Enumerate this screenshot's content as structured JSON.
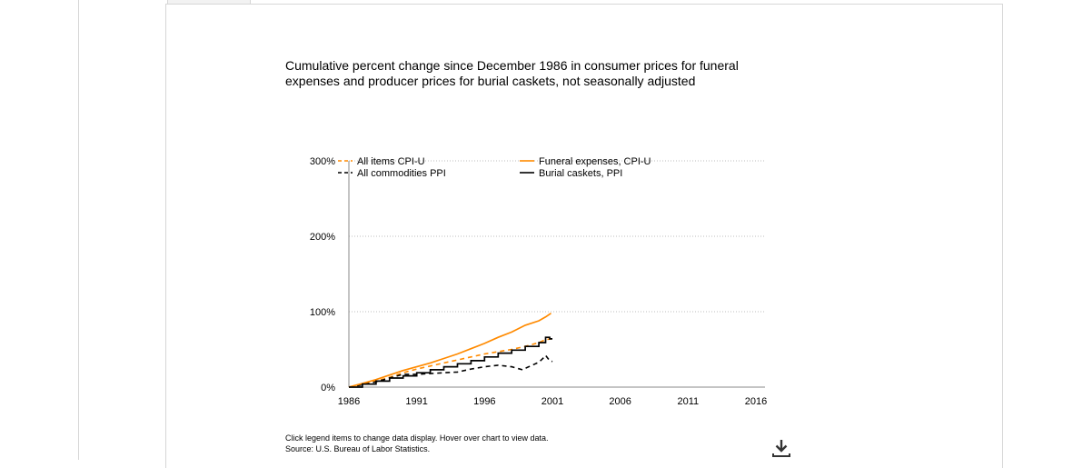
{
  "chart_title": "Cumulative percent change since December 1986 in consumer prices for funeral expenses and producer prices for burial caskets, not seasonally adjusted",
  "footnote": {
    "instructions": "Click legend items to change data display. Hover over chart to view data.",
    "source": "Source: U.S. Bureau of Labor Statistics."
  },
  "download_icon": "download-icon",
  "colors": {
    "orange": "#ff8a00",
    "black": "#000000",
    "grid": "#bdbdbd"
  },
  "chart_data": {
    "type": "line",
    "title": "Cumulative percent change since December 1986 in consumer prices for funeral expenses and producer prices for burial caskets, not seasonally adjusted",
    "xlabel": "",
    "ylabel": "",
    "xlim": [
      1986,
      2016
    ],
    "ylim": [
      0,
      300
    ],
    "x_ticks": [
      "1986",
      "1991",
      "1996",
      "2001",
      "2006",
      "2011",
      "2016"
    ],
    "y_ticks": [
      "0%",
      "100%",
      "200%",
      "300%"
    ],
    "grid": "horizontal dotted",
    "legend": "top",
    "series": [
      {
        "name": "All items CPI-U",
        "color": "#ff8a00",
        "dash": true,
        "points": [
          [
            1986,
            0
          ],
          [
            1987,
            4
          ],
          [
            1988,
            8
          ],
          [
            1989,
            13
          ],
          [
            1990,
            19
          ],
          [
            1991,
            24
          ],
          [
            1992,
            28
          ],
          [
            1993,
            32
          ],
          [
            1994,
            36
          ],
          [
            1995,
            40
          ],
          [
            1996,
            44
          ],
          [
            1997,
            47
          ],
          [
            1998,
            50
          ],
          [
            1999,
            54
          ],
          [
            2000,
            59
          ],
          [
            2000.5,
            63
          ],
          [
            2000.9,
            64
          ]
        ]
      },
      {
        "name": "All commodities PPI",
        "color": "#000000",
        "dash": true,
        "points": [
          [
            1986,
            0
          ],
          [
            1987,
            3
          ],
          [
            1988,
            7
          ],
          [
            1989,
            12
          ],
          [
            1990,
            17
          ],
          [
            1991,
            17
          ],
          [
            1992,
            18
          ],
          [
            1993,
            19
          ],
          [
            1994,
            20
          ],
          [
            1995,
            24
          ],
          [
            1996,
            27
          ],
          [
            1997,
            29
          ],
          [
            1998,
            27
          ],
          [
            1998.8,
            23
          ],
          [
            1999,
            25
          ],
          [
            2000,
            33
          ],
          [
            2000.3,
            38
          ],
          [
            2000.5,
            42
          ],
          [
            2000.8,
            35
          ],
          [
            2001,
            34
          ]
        ]
      },
      {
        "name": "Funeral expenses, CPI-U",
        "color": "#ff8a00",
        "dash": false,
        "points": [
          [
            1986,
            0
          ],
          [
            1987,
            5
          ],
          [
            1988,
            10
          ],
          [
            1989,
            16
          ],
          [
            1990,
            22
          ],
          [
            1991,
            27
          ],
          [
            1992,
            32
          ],
          [
            1993,
            38
          ],
          [
            1994,
            44
          ],
          [
            1995,
            51
          ],
          [
            1996,
            58
          ],
          [
            1997,
            66
          ],
          [
            1998,
            73
          ],
          [
            1999,
            82
          ],
          [
            2000,
            88
          ],
          [
            2000.5,
            93
          ],
          [
            2000.9,
            98
          ]
        ]
      },
      {
        "name": "Burial caskets, PPI",
        "color": "#000000",
        "dash": false,
        "step": true,
        "points": [
          [
            1986,
            0
          ],
          [
            1987,
            4
          ],
          [
            1988,
            8
          ],
          [
            1989,
            12
          ],
          [
            1990,
            15
          ],
          [
            1991,
            19
          ],
          [
            1992,
            23
          ],
          [
            1993,
            27
          ],
          [
            1994,
            31
          ],
          [
            1995,
            35
          ],
          [
            1996,
            40
          ],
          [
            1997,
            45
          ],
          [
            1998,
            49
          ],
          [
            1999,
            54
          ],
          [
            2000,
            59
          ],
          [
            2000.5,
            66
          ],
          [
            2000.8,
            64
          ],
          [
            2001,
            64
          ]
        ]
      }
    ]
  }
}
